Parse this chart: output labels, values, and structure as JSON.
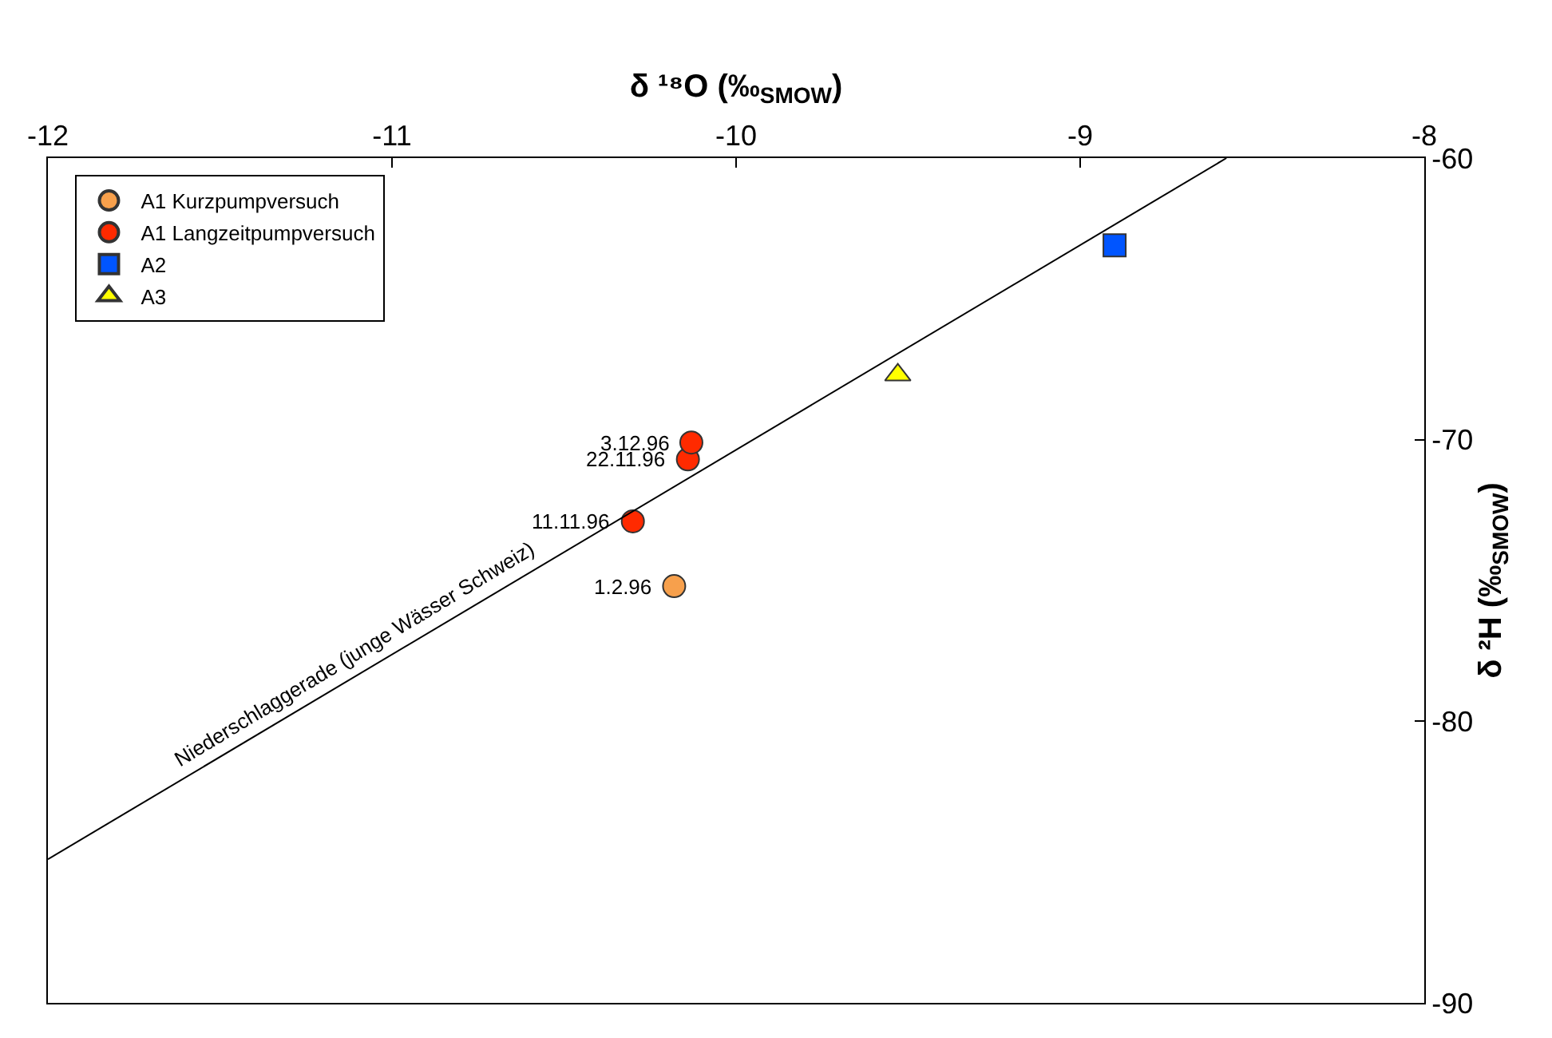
{
  "chart_data": {
    "type": "scatter",
    "xlabel": "δ ¹⁸O (‰$_{SMOW}$)",
    "ylabel": "δ ²H (‰$_{SMOW}$)",
    "xlim": [
      -12,
      -8
    ],
    "xticks": [
      -12,
      -11,
      -10,
      -9,
      -8
    ],
    "ylim": [
      -90,
      -60
    ],
    "yticks": [
      -90,
      -80,
      -70,
      -60
    ],
    "legend": "top left",
    "series": [
      {
        "name": "A1 Kurzpumpversuch",
        "color": "#f7a04c",
        "marker": "circle",
        "x": [
          -10.18
        ],
        "values": [
          -75.2
        ]
      },
      {
        "name": "A1 Langzeitpumpversuch",
        "color": "#ff2a00",
        "marker": "circle",
        "x": [
          -10.3,
          -10.14,
          -10.13
        ],
        "values": [
          -72.9,
          -70.7,
          -70.1
        ]
      },
      {
        "name": "A2",
        "color": "#0055ff",
        "marker": "square",
        "x": [
          -8.9
        ],
        "values": [
          -63.1
        ]
      },
      {
        "name": "A3",
        "color": "#ffff00",
        "marker": "triangle",
        "x": [
          -9.53
        ],
        "values": [
          -67.7
        ]
      },
      {
        "type": "line",
        "color": "#000000",
        "marker": "none",
        "line_style": "solid",
        "x": [
          -12,
          -8.575
        ],
        "values": [
          -84.9,
          -60
        ]
      }
    ],
    "annotations": [
      {
        "text": "1.2.96",
        "x": -10.18,
        "y": -75.2
      },
      {
        "text": "11.11.96",
        "x": -10.3,
        "y": -72.9
      },
      {
        "text": "22.11.96",
        "x": -10.14,
        "y": -70.7
      },
      {
        "text": "3.12.96",
        "x": -10.13,
        "y": -70.1
      },
      "Niederschlaggerade (junge Wässer Schweiz)"
    ]
  }
}
